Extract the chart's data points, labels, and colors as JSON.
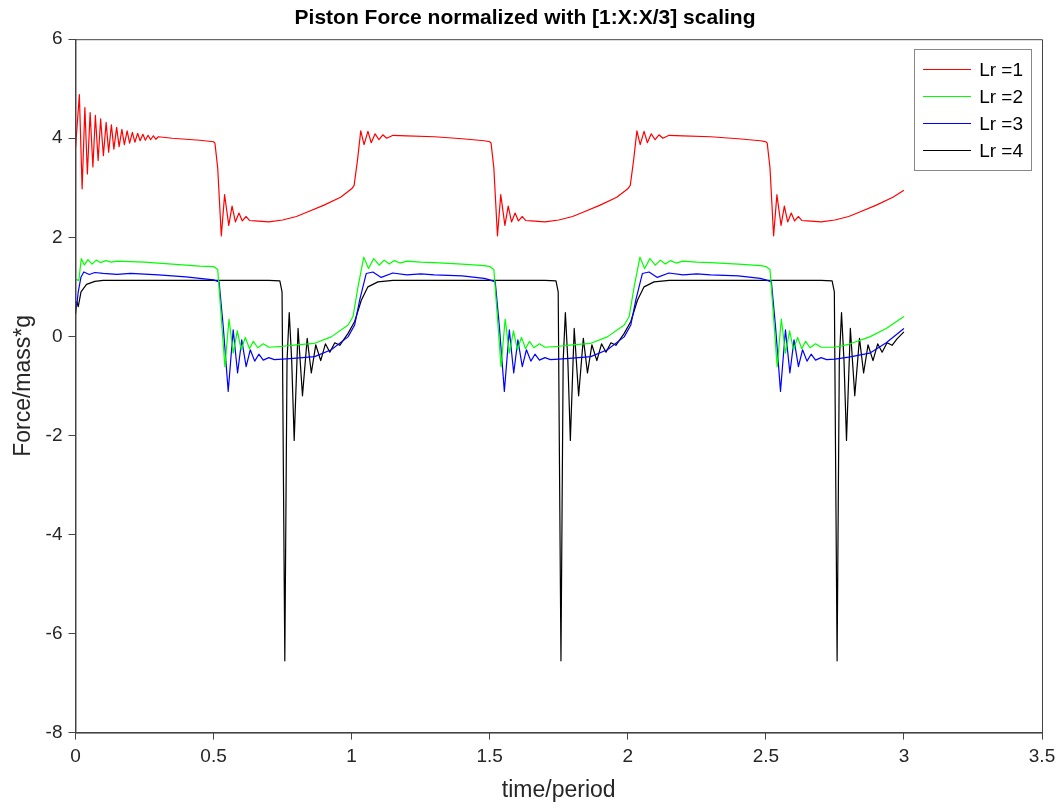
{
  "chart_data": {
    "type": "line",
    "title": "Piston Force normalized with [1:X:X/3] scaling",
    "xlabel": "time/period",
    "ylabel": "Force/mass*g",
    "xlim": [
      0,
      3.5
    ],
    "xticks": [
      0,
      0.5,
      1,
      1.5,
      2,
      2.5,
      3,
      3.5
    ],
    "ylim": [
      -8,
      6
    ],
    "yticks": [
      -8,
      -6,
      -4,
      -2,
      0,
      2,
      4,
      6
    ],
    "legend": "top right",
    "series": [
      {
        "name": "Lr =1",
        "color": "#ff0000",
        "x": [
          0,
          0.014,
          0.024,
          0.034,
          0.043,
          0.053,
          0.063,
          0.072,
          0.082,
          0.091,
          0.101,
          0.111,
          0.12,
          0.13,
          0.139,
          0.149,
          0.158,
          0.168,
          0.177,
          0.187,
          0.196,
          0.206,
          0.215,
          0.225,
          0.234,
          0.244,
          0.253,
          0.263,
          0.272,
          0.282,
          0.291,
          0.3,
          0.35,
          0.4,
          0.45,
          0.5,
          0.505,
          0.515,
          0.528,
          0.54,
          0.555,
          0.567,
          0.579,
          0.592,
          0.604,
          0.618,
          0.63,
          0.65,
          0.7,
          0.75,
          0.8,
          0.84,
          0.9,
          0.96,
          1.0,
          1.009,
          1.021,
          1.033,
          1.045,
          1.059,
          1.071,
          1.085,
          1.099,
          1.113,
          1.127,
          1.15,
          1.2,
          1.3,
          1.4,
          1.48,
          1.5,
          1.505,
          1.515,
          1.528,
          1.54,
          1.555,
          1.567,
          1.579,
          1.592,
          1.604,
          1.618,
          1.63,
          1.65,
          1.7,
          1.75,
          1.8,
          1.84,
          1.9,
          1.96,
          2.0,
          2.009,
          2.021,
          2.033,
          2.045,
          2.059,
          2.071,
          2.085,
          2.099,
          2.113,
          2.127,
          2.15,
          2.2,
          2.3,
          2.4,
          2.48,
          2.5,
          2.505,
          2.515,
          2.528,
          2.54,
          2.555,
          2.567,
          2.579,
          2.592,
          2.604,
          2.618,
          2.63,
          2.65,
          2.7,
          2.75,
          2.8,
          2.84,
          2.9,
          2.96,
          3.0
        ],
        "values": [
          3.8,
          4.88,
          2.98,
          4.62,
          3.28,
          4.52,
          3.42,
          4.46,
          3.55,
          4.39,
          3.65,
          4.32,
          3.72,
          4.27,
          3.78,
          4.22,
          3.83,
          4.18,
          3.87,
          4.15,
          3.9,
          4.12,
          3.92,
          4.1,
          3.95,
          4.08,
          3.96,
          4.06,
          3.97,
          4.05,
          3.98,
          4.03,
          4.0,
          3.98,
          3.96,
          3.93,
          3.9,
          3.4,
          2.03,
          2.86,
          2.24,
          2.63,
          2.31,
          2.49,
          2.33,
          2.42,
          2.34,
          2.33,
          2.31,
          2.35,
          2.42,
          2.51,
          2.65,
          2.81,
          2.98,
          3.05,
          3.55,
          4.15,
          3.87,
          4.14,
          3.91,
          4.09,
          3.97,
          4.07,
          4.0,
          4.06,
          4.05,
          4.03,
          3.99,
          3.95,
          3.93,
          3.9,
          3.4,
          2.03,
          2.86,
          2.24,
          2.63,
          2.31,
          2.49,
          2.33,
          2.42,
          2.34,
          2.33,
          2.31,
          2.35,
          2.42,
          2.51,
          2.65,
          2.81,
          2.98,
          3.05,
          3.55,
          4.15,
          3.87,
          4.14,
          3.91,
          4.09,
          3.97,
          4.07,
          4.0,
          4.06,
          4.05,
          4.03,
          3.99,
          3.95,
          3.93,
          3.9,
          3.4,
          2.03,
          2.86,
          2.24,
          2.63,
          2.31,
          2.49,
          2.33,
          2.42,
          2.34,
          2.33,
          2.31,
          2.35,
          2.42,
          2.51,
          2.65,
          2.81,
          2.95
        ]
      },
      {
        "name": "Lr =2",
        "color": "#00ff00",
        "x": [
          0,
          0.012,
          0.021,
          0.032,
          0.045,
          0.06,
          0.075,
          0.09,
          0.11,
          0.13,
          0.15,
          0.2,
          0.25,
          0.3,
          0.35,
          0.4,
          0.45,
          0.5,
          0.515,
          0.525,
          0.541,
          0.556,
          0.571,
          0.586,
          0.6,
          0.615,
          0.63,
          0.644,
          0.66,
          0.68,
          0.7,
          0.75,
          0.8,
          0.866,
          0.926,
          0.987,
          1.005,
          1.023,
          1.044,
          1.061,
          1.08,
          1.1,
          1.118,
          1.136,
          1.155,
          1.175,
          1.2,
          1.25,
          1.3,
          1.4,
          1.48,
          1.5,
          1.515,
          1.525,
          1.541,
          1.556,
          1.571,
          1.586,
          1.6,
          1.615,
          1.63,
          1.644,
          1.66,
          1.68,
          1.7,
          1.75,
          1.8,
          1.866,
          1.926,
          1.987,
          2.005,
          2.023,
          2.044,
          2.061,
          2.08,
          2.1,
          2.118,
          2.136,
          2.155,
          2.175,
          2.2,
          2.25,
          2.3,
          2.4,
          2.48,
          2.5,
          2.515,
          2.525,
          2.541,
          2.556,
          2.571,
          2.586,
          2.6,
          2.615,
          2.63,
          2.644,
          2.66,
          2.68,
          2.7,
          2.75,
          2.8,
          2.876,
          2.936,
          3.0
        ],
        "values": [
          1.15,
          1.13,
          1.57,
          1.44,
          1.55,
          1.46,
          1.54,
          1.49,
          1.53,
          1.5,
          1.52,
          1.51,
          1.5,
          1.48,
          1.46,
          1.44,
          1.42,
          1.41,
          1.35,
          0.6,
          -0.61,
          0.35,
          -0.34,
          0.11,
          -0.27,
          -0.02,
          -0.25,
          -0.1,
          -0.23,
          -0.15,
          -0.22,
          -0.2,
          -0.17,
          -0.14,
          -0.01,
          0.23,
          0.4,
          1.0,
          1.6,
          1.37,
          1.57,
          1.44,
          1.54,
          1.46,
          1.53,
          1.48,
          1.52,
          1.5,
          1.49,
          1.46,
          1.43,
          1.41,
          1.35,
          0.6,
          -0.61,
          0.35,
          -0.34,
          0.11,
          -0.27,
          -0.02,
          -0.25,
          -0.1,
          -0.23,
          -0.15,
          -0.22,
          -0.2,
          -0.17,
          -0.14,
          -0.01,
          0.23,
          0.4,
          1.0,
          1.6,
          1.37,
          1.57,
          1.44,
          1.54,
          1.46,
          1.53,
          1.48,
          1.52,
          1.5,
          1.49,
          1.46,
          1.43,
          1.41,
          1.35,
          0.6,
          -0.61,
          0.35,
          -0.34,
          0.11,
          -0.27,
          -0.02,
          -0.25,
          -0.1,
          -0.23,
          -0.15,
          -0.22,
          -0.22,
          -0.16,
          -0.01,
          0.16,
          0.4
        ]
      },
      {
        "name": "Lr =3",
        "color": "#0000ff",
        "x": [
          0.004,
          0.01,
          0.02,
          0.03,
          0.05,
          0.07,
          0.1,
          0.15,
          0.2,
          0.3,
          0.4,
          0.45,
          0.5,
          0.52,
          0.535,
          0.553,
          0.571,
          0.587,
          0.602,
          0.618,
          0.633,
          0.649,
          0.664,
          0.68,
          0.7,
          0.72,
          0.75,
          0.8,
          0.866,
          0.926,
          0.987,
          1.011,
          1.029,
          1.053,
          1.077,
          1.107,
          1.149,
          1.2,
          1.25,
          1.3,
          1.4,
          1.48,
          1.5,
          1.52,
          1.535,
          1.553,
          1.571,
          1.587,
          1.602,
          1.618,
          1.633,
          1.649,
          1.664,
          1.68,
          1.7,
          1.72,
          1.75,
          1.8,
          1.866,
          1.926,
          1.987,
          2.011,
          2.029,
          2.053,
          2.077,
          2.107,
          2.149,
          2.2,
          2.25,
          2.3,
          2.4,
          2.48,
          2.5,
          2.52,
          2.535,
          2.553,
          2.571,
          2.587,
          2.602,
          2.618,
          2.633,
          2.649,
          2.664,
          2.68,
          2.7,
          2.72,
          2.75,
          2.8,
          2.876,
          2.936,
          3.0
        ],
        "values": [
          0.6,
          0.9,
          1.2,
          1.3,
          1.25,
          1.29,
          1.27,
          1.25,
          1.27,
          1.24,
          1.2,
          1.17,
          1.14,
          1.1,
          0.2,
          -1.11,
          0.13,
          -0.74,
          -0.07,
          -0.61,
          -0.27,
          -0.5,
          -0.36,
          -0.48,
          -0.43,
          -0.47,
          -0.46,
          -0.44,
          -0.41,
          -0.27,
          -0.01,
          0.23,
          0.73,
          1.27,
          1.3,
          1.19,
          1.28,
          1.24,
          1.26,
          1.24,
          1.22,
          1.17,
          1.14,
          1.1,
          0.2,
          -1.11,
          0.13,
          -0.74,
          -0.07,
          -0.61,
          -0.27,
          -0.5,
          -0.36,
          -0.48,
          -0.43,
          -0.47,
          -0.46,
          -0.44,
          -0.41,
          -0.27,
          -0.01,
          0.23,
          0.73,
          1.27,
          1.3,
          1.19,
          1.28,
          1.24,
          1.26,
          1.24,
          1.22,
          1.17,
          1.14,
          1.1,
          0.2,
          -1.11,
          0.13,
          -0.74,
          -0.07,
          -0.61,
          -0.27,
          -0.5,
          -0.36,
          -0.48,
          -0.43,
          -0.47,
          -0.46,
          -0.42,
          -0.34,
          -0.13,
          0.16
        ]
      },
      {
        "name": "Lr =4",
        "color": "#000000",
        "x": [
          0,
          0.005,
          0.01,
          0.02,
          0.04,
          0.07,
          0.1,
          0.5,
          0.7,
          0.74,
          0.748,
          0.758,
          0.766,
          0.774,
          0.783,
          0.792,
          0.806,
          0.822,
          0.839,
          0.854,
          0.87,
          0.888,
          0.905,
          0.921,
          0.939,
          0.957,
          0.987,
          1.011,
          1.035,
          1.059,
          1.095,
          1.15,
          1.3,
          1.5,
          1.7,
          1.74,
          1.748,
          1.758,
          1.766,
          1.774,
          1.783,
          1.792,
          1.806,
          1.822,
          1.839,
          1.854,
          1.87,
          1.888,
          1.905,
          1.921,
          1.939,
          1.957,
          1.987,
          2.011,
          2.035,
          2.059,
          2.095,
          2.15,
          2.3,
          2.5,
          2.7,
          2.74,
          2.748,
          2.758,
          2.766,
          2.774,
          2.783,
          2.792,
          2.806,
          2.822,
          2.839,
          2.854,
          2.87,
          2.888,
          2.905,
          2.921,
          2.939,
          2.957,
          2.975,
          3.0
        ],
        "values": [
          0.45,
          0.7,
          0.6,
          0.9,
          1.05,
          1.11,
          1.13,
          1.13,
          1.13,
          1.12,
          0.9,
          -6.55,
          -0.5,
          0.48,
          -0.5,
          -2.1,
          0.16,
          -1.2,
          -0.04,
          -0.74,
          -0.17,
          -0.49,
          -0.15,
          -0.32,
          -0.13,
          -0.18,
          0.06,
          0.3,
          0.73,
          1.0,
          1.1,
          1.13,
          1.13,
          1.13,
          1.13,
          1.12,
          0.9,
          -6.55,
          -0.5,
          0.48,
          -0.5,
          -2.1,
          0.16,
          -1.2,
          -0.04,
          -0.74,
          -0.17,
          -0.49,
          -0.15,
          -0.32,
          -0.13,
          -0.18,
          0.06,
          0.3,
          0.73,
          1.0,
          1.1,
          1.13,
          1.13,
          1.13,
          1.13,
          1.12,
          0.9,
          -6.55,
          -0.5,
          0.48,
          -0.5,
          -2.1,
          0.16,
          -1.2,
          -0.04,
          -0.74,
          -0.17,
          -0.49,
          -0.15,
          -0.32,
          -0.13,
          -0.18,
          -0.05,
          0.09
        ]
      }
    ]
  }
}
